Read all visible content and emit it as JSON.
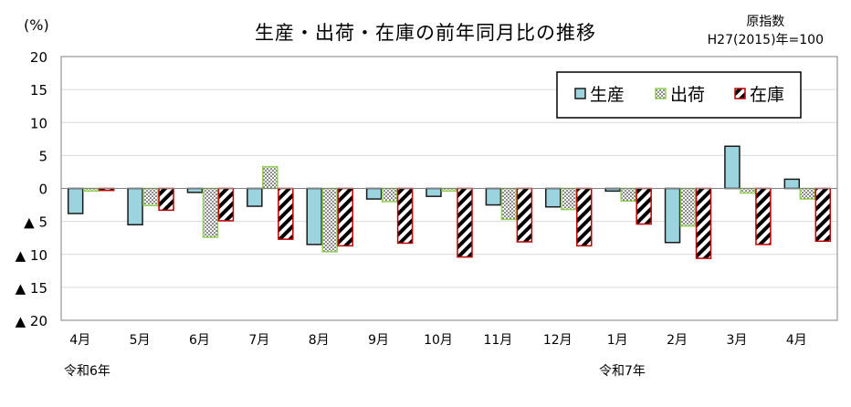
{
  "chart_data": {
    "type": "bar",
    "title": "生産・出荷・在庫の前年同月比の推移",
    "y_unit": "(%)",
    "index_note": [
      "原指数",
      "H27(2015)年=100"
    ],
    "categories": [
      "4月",
      "5月",
      "6月",
      "7月",
      "8月",
      "9月",
      "10月",
      "11月",
      "12月",
      "1月",
      "2月",
      "3月",
      "4月"
    ],
    "era_labels": [
      {
        "text": "令和6年",
        "category_index": 0
      },
      {
        "text": "令和7年",
        "category_index": 9
      }
    ],
    "ylim": [
      -20,
      20
    ],
    "yticks": [
      20,
      15,
      10,
      5,
      0,
      -5,
      -10,
      -15,
      -20
    ],
    "ytick_labels": [
      "20",
      "15",
      "10",
      "5",
      "0",
      "▲ 5",
      "▲ 10",
      "▲ 15",
      "▲ 20"
    ],
    "grid": true,
    "legend_position": "top-right",
    "series": [
      {
        "name": "生産",
        "pattern": "solid",
        "values": [
          -3.8,
          -5.5,
          -0.6,
          -2.7,
          -8.5,
          -1.6,
          -1.2,
          -2.5,
          -2.8,
          -0.4,
          -8.2,
          6.4,
          1.4
        ]
      },
      {
        "name": "出荷",
        "pattern": "dotted",
        "values": [
          -0.4,
          -2.6,
          -7.4,
          3.3,
          -9.6,
          -2.0,
          -0.4,
          -4.7,
          -3.2,
          -1.9,
          -5.7,
          -0.7,
          -1.6
        ]
      },
      {
        "name": "在庫",
        "pattern": "striped",
        "values": [
          -0.3,
          -3.3,
          -4.9,
          -7.7,
          -8.7,
          -8.3,
          -10.4,
          -8.1,
          -8.7,
          -5.4,
          -10.6,
          -8.5,
          -8.0
        ]
      }
    ],
    "colors": {
      "生産": "#9bd3df",
      "生産_border": "#1a1a1a",
      "出荷": "#92d050",
      "在庫": "#c00000",
      "grid": "#d9d9d9",
      "axis": "#808080"
    }
  }
}
